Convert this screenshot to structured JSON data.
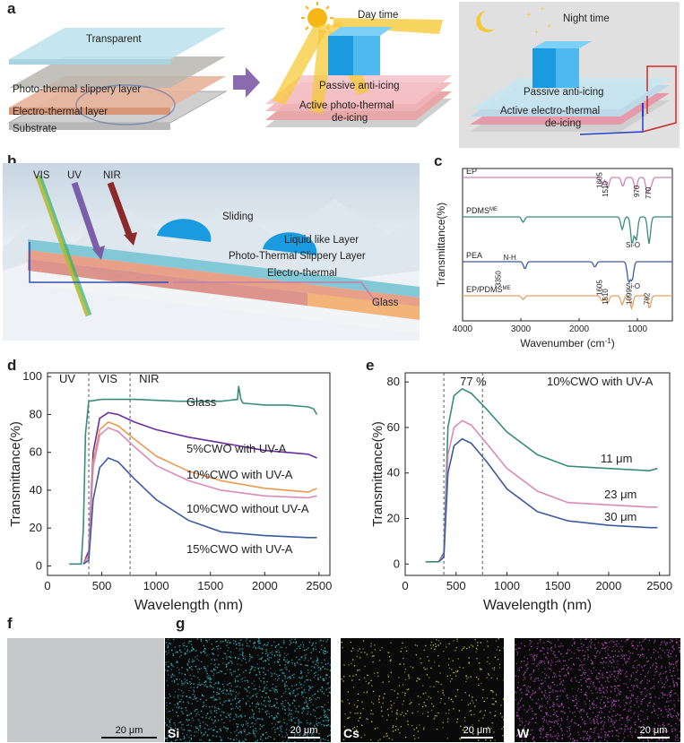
{
  "panels": {
    "a": "a",
    "b": "b",
    "c": "c",
    "d": "d",
    "e": "e",
    "f": "f",
    "g": "g"
  },
  "panel_a": {
    "left_labels": [
      "Transparent",
      "Photo-thermal slippery layer",
      "Electro-thermal layer",
      "Substrate"
    ],
    "day_title": "Day time",
    "day_labels": [
      "Passive anti-icing",
      "Active photo-thermal",
      "de-icing"
    ],
    "night_title": "Night time",
    "night_labels": [
      "Passive anti-icing",
      "Active electro-thermal",
      "de-icing"
    ],
    "colors": {
      "arrow": "#8b6bb0",
      "ice": "#1a9be0",
      "slippery": "#c8e6ee",
      "electro": "#e8b49a",
      "substrate": "#cfcfcf"
    }
  },
  "panel_b": {
    "beams": [
      "VIS",
      "UV",
      "NIR"
    ],
    "sliding": "Sliding",
    "liquid": "Liquid like Layer",
    "pt_layer": "Photo-Thermal Slippery Layer",
    "et_layer": "Electro-thermal",
    "glass": "Glass"
  },
  "chart_data": [
    {
      "panel": "c",
      "type": "line",
      "xlabel": "Wavenumber (cm",
      "xlabel_sup": "-1",
      "xlabel_close": ")",
      "ylabel": "Transmittance(%)",
      "xlim": [
        4000,
        400
      ],
      "xticks": [
        "4000",
        "3000",
        "2000",
        "1000"
      ],
      "series": [
        {
          "name": "EP",
          "color": "#c985b8"
        },
        {
          "name": "PDMS",
          "sup": "ME",
          "color": "#3a8c7a"
        },
        {
          "name": "PEA",
          "color": "#3d5aa0"
        },
        {
          "name": "EP/PDMS",
          "sup": "ME",
          "color": "#e8a060"
        }
      ],
      "annotations": [
        "1605",
        "1510",
        "970",
        "770",
        "Si-O",
        "Si-O",
        "3350",
        "N-H",
        "1605",
        "1510",
        "1099",
        "792"
      ]
    },
    {
      "panel": "d",
      "type": "line",
      "xlabel": "Wavelength (nm)",
      "ylabel": "Transmittance(%)",
      "xlim": [
        0,
        2600
      ],
      "ylim": [
        -5,
        102
      ],
      "xticks": [
        "0",
        "500",
        "1000",
        "1500",
        "2000",
        "2500"
      ],
      "yticks": [
        "0",
        "20",
        "40",
        "60",
        "80",
        "100"
      ],
      "regions": [
        "UV",
        "VIS",
        "NIR"
      ],
      "region_bounds": [
        380,
        760
      ],
      "series": [
        {
          "name": "Glass",
          "color": "#3a8c7a",
          "x": [
            200,
            280,
            310,
            330,
            350,
            380,
            500,
            800,
            1200,
            1600,
            1750,
            1760,
            1780,
            1800,
            2000,
            2200,
            2400,
            2450,
            2480
          ],
          "y": [
            1,
            1,
            1,
            20,
            70,
            87,
            88,
            88,
            87,
            87,
            88,
            95,
            88,
            86,
            85,
            85,
            84,
            83,
            80
          ]
        },
        {
          "name": "5%CWO with UV-A",
          "color": "#6a2f9e",
          "x": [
            330,
            380,
            420,
            480,
            560,
            650,
            800,
            1000,
            1300,
            1600,
            2000,
            2400,
            2480
          ],
          "y": [
            1,
            8,
            60,
            78,
            81,
            80,
            76,
            72,
            68,
            65,
            61,
            59,
            57
          ]
        },
        {
          "name": "10%CWO with UV-A",
          "color": "#e89a50",
          "x": [
            330,
            380,
            420,
            480,
            560,
            650,
            800,
            1000,
            1300,
            1600,
            2000,
            2400,
            2480
          ],
          "y": [
            1,
            6,
            55,
            72,
            76,
            74,
            67,
            58,
            50,
            45,
            41,
            39,
            41
          ]
        },
        {
          "name": "10%CWO without UV-A",
          "color": "#d98ab8",
          "x": [
            330,
            380,
            420,
            480,
            560,
            650,
            800,
            1000,
            1300,
            1600,
            2000,
            2400,
            2480
          ],
          "y": [
            1,
            5,
            52,
            69,
            73,
            71,
            63,
            53,
            45,
            40,
            37,
            36,
            37
          ]
        },
        {
          "name": "15%CWO with UV-A",
          "color": "#3d5aa0",
          "x": [
            330,
            380,
            420,
            480,
            560,
            650,
            800,
            1000,
            1300,
            1600,
            2000,
            2400,
            2480
          ],
          "y": [
            1,
            3,
            35,
            52,
            57,
            55,
            46,
            35,
            24,
            18,
            16,
            15,
            15
          ]
        }
      ]
    },
    {
      "panel": "e",
      "type": "line",
      "title": "10%CWO with UV-A",
      "xlabel": "Wavelength (nm)",
      "ylabel": "Transmittance(%)",
      "xlim": [
        0,
        2600
      ],
      "ylim": [
        -5,
        84
      ],
      "xticks": [
        "0",
        "500",
        "1000",
        "1500",
        "2000",
        "2500"
      ],
      "yticks": [
        "0",
        "20",
        "40",
        "60",
        "80"
      ],
      "peak_label": "77 %",
      "region_bounds": [
        380,
        760
      ],
      "series": [
        {
          "name": "11 μm",
          "color": "#3a8c7a",
          "x": [
            200,
            330,
            380,
            420,
            480,
            560,
            650,
            800,
            1000,
            1300,
            1600,
            2000,
            2400,
            2480
          ],
          "y": [
            1,
            1,
            5,
            60,
            74,
            77,
            75,
            68,
            58,
            48,
            43,
            42,
            41,
            42
          ]
        },
        {
          "name": "23 μm",
          "color": "#d98ab8",
          "x": [
            330,
            380,
            420,
            480,
            560,
            650,
            800,
            1000,
            1300,
            1600,
            2000,
            2400,
            2480
          ],
          "y": [
            1,
            4,
            48,
            60,
            63,
            61,
            53,
            42,
            32,
            27,
            26,
            25,
            25
          ]
        },
        {
          "name": "30 μm",
          "color": "#3d5aa0",
          "x": [
            330,
            380,
            420,
            480,
            560,
            650,
            800,
            1000,
            1300,
            1600,
            2000,
            2400,
            2480
          ],
          "y": [
            1,
            3,
            40,
            52,
            55,
            53,
            45,
            33,
            23,
            19,
            17,
            16,
            16
          ]
        }
      ]
    }
  ],
  "sem": {
    "f_scale": "20 μm",
    "g": [
      {
        "el": "Si",
        "scale": "20 μm",
        "color": "#3bbfd0"
      },
      {
        "el": "Cs",
        "scale": "20 μm",
        "color": "#d8d840"
      },
      {
        "el": "W",
        "scale": "20 μm",
        "color": "#c050c8"
      }
    ]
  }
}
